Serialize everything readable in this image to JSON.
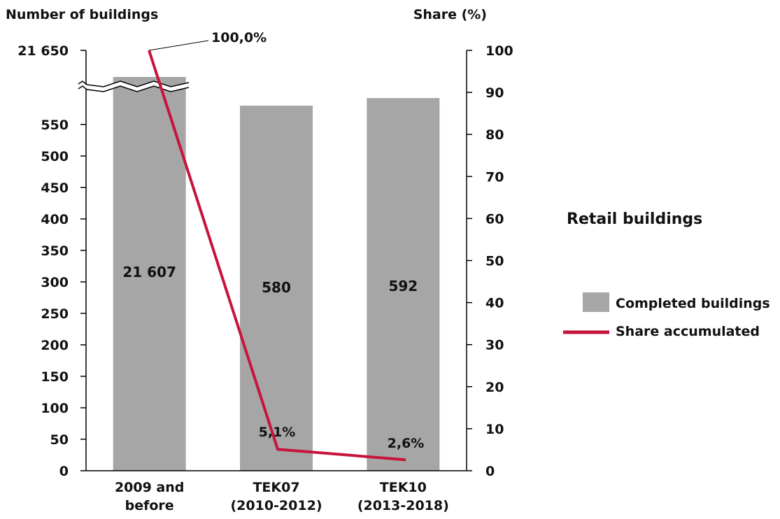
{
  "chart_data": {
    "type": "bar",
    "title": "Retail buildings",
    "categories": [
      [
        "2009 and",
        "before"
      ],
      [
        "TEK07",
        "(2010-2012)"
      ],
      [
        "TEK10",
        "(2013-2018)"
      ]
    ],
    "series": [
      {
        "name": "Completed buildings",
        "type": "bar",
        "axis": "left",
        "values": [
          21607,
          580,
          592
        ],
        "labels": [
          "21 607",
          "580",
          "592"
        ],
        "color": "#a6a6a6"
      },
      {
        "name": "Share accumulated",
        "type": "line",
        "axis": "right",
        "values": [
          100.0,
          5.1,
          2.6
        ],
        "labels": [
          "100,0%",
          "5,1%",
          "2,6%"
        ],
        "color": "#c8143c"
      }
    ],
    "y_left": {
      "label": "Number of buildings",
      "ticks": [
        0,
        50,
        100,
        150,
        200,
        250,
        300,
        350,
        400,
        450,
        500,
        550
      ],
      "tick_labels": [
        "0",
        "50",
        "100",
        "150",
        "200",
        "250",
        "300",
        "350",
        "400",
        "450",
        "500",
        "550"
      ],
      "top_label": "21 650",
      "axis_break": true
    },
    "y_right": {
      "label": "Share (%)",
      "ylim": [
        0,
        100
      ],
      "ticks": [
        0,
        10,
        20,
        30,
        40,
        50,
        60,
        70,
        80,
        90,
        100
      ],
      "tick_labels": [
        "0",
        "10",
        "20",
        "30",
        "40",
        "50",
        "60",
        "70",
        "80",
        "90",
        "100"
      ]
    },
    "grid": false,
    "legend_position": "right"
  }
}
